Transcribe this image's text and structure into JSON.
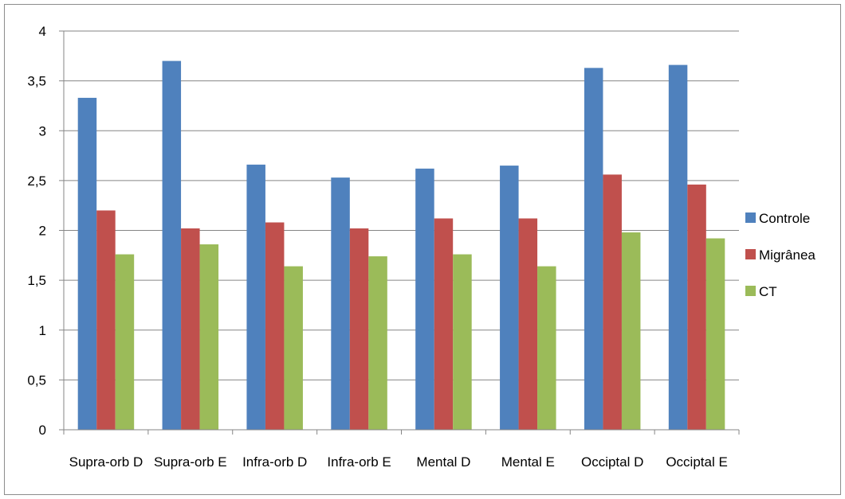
{
  "chart_data": {
    "type": "bar",
    "categories": [
      "Supra-orb D",
      "Supra-orb E",
      "Infra-orb D",
      "Infra-orb E",
      "Mental D",
      "Mental E",
      "Occiptal D",
      "Occiptal E"
    ],
    "series": [
      {
        "name": "Controle",
        "color": "#4F81BD",
        "values": [
          3.33,
          3.7,
          2.66,
          2.53,
          2.62,
          2.65,
          3.63,
          3.66
        ]
      },
      {
        "name": "Migrânea",
        "color": "#C0504D",
        "values": [
          2.2,
          2.02,
          2.08,
          2.02,
          2.12,
          2.12,
          2.56,
          2.46
        ]
      },
      {
        "name": "CT",
        "color": "#9BBB59",
        "values": [
          1.76,
          1.86,
          1.64,
          1.74,
          1.76,
          1.64,
          1.98,
          1.92
        ]
      }
    ],
    "yticks": [
      "0",
      "0,5",
      "1",
      "1,5",
      "2",
      "2,5",
      "3",
      "3,5",
      "4"
    ],
    "ylim": [
      0,
      4
    ],
    "grid": true,
    "legend": "right"
  }
}
